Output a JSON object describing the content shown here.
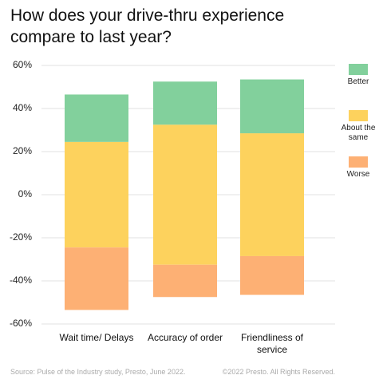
{
  "chart_data": {
    "type": "diverging-bar",
    "title": "How does your drive-thru experience compare to last year?",
    "categories": [
      "Wait time/ Delays",
      "Accuracy of order",
      "Friendliness of service"
    ],
    "series": [
      {
        "name": "Better",
        "color": "#82d09c",
        "values": [
          22,
          20,
          25
        ]
      },
      {
        "name": "About the same",
        "color": "#fdd25d",
        "values": [
          49,
          65,
          57
        ]
      },
      {
        "name": "Worse",
        "color": "#fdb074",
        "values": [
          29,
          15,
          18
        ]
      }
    ],
    "ylim": [
      -60,
      60
    ],
    "yticks": [
      {
        "value": -60,
        "label": "-60%"
      },
      {
        "value": -40,
        "label": "-40%"
      },
      {
        "value": -20,
        "label": "-20%"
      },
      {
        "value": 0,
        "label": "0%"
      },
      {
        "value": 20,
        "label": "20%"
      },
      {
        "value": 40,
        "label": "40%"
      },
      {
        "value": 60,
        "label": "60%"
      }
    ],
    "grid": true,
    "source": "Source: Pulse of the Industry study, Presto, June 2022.",
    "copyright": "©2022 Presto. All Rights Reserved."
  }
}
